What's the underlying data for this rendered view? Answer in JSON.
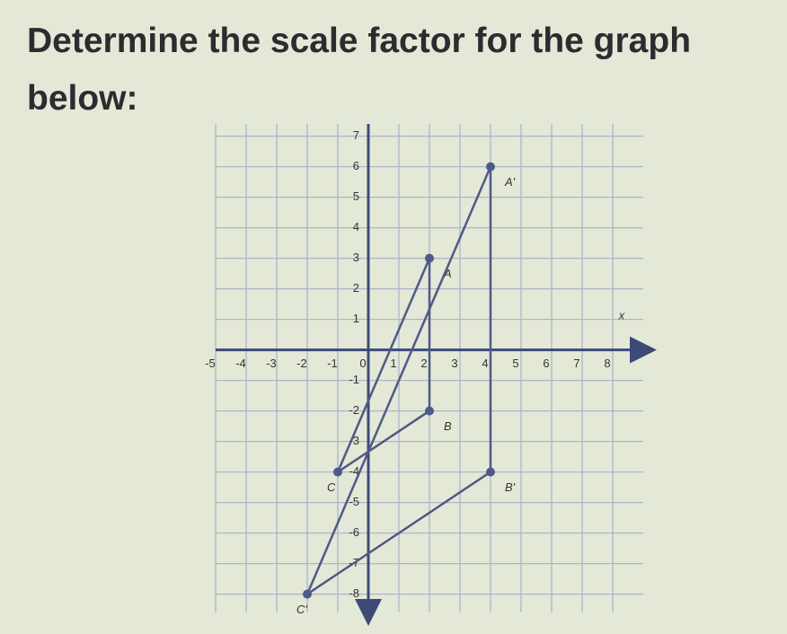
{
  "chart_data": {
    "type": "line",
    "title": "Determine the scale factor for the graph below:",
    "x_label": "x",
    "xlim": [
      -5,
      9
    ],
    "ylim": [
      -8.6,
      7.4
    ],
    "xticks": [
      -5,
      -4,
      -3,
      -2,
      -1,
      0,
      1,
      2,
      3,
      4,
      5,
      6,
      7,
      8
    ],
    "yticks": [
      7,
      6,
      5,
      4,
      3,
      2,
      1,
      -1,
      -2,
      -3,
      -4,
      -5,
      -6,
      -7,
      -8
    ],
    "grid": true,
    "series": [
      {
        "color": "#4e5a86",
        "labels": [
          "A",
          "B",
          "C"
        ],
        "x": [
          2,
          2,
          -1
        ],
        "values": [
          3,
          -2,
          -4
        ]
      },
      {
        "color": "#4e5a86",
        "labels": [
          "A'",
          "B'",
          "C'"
        ],
        "x": [
          4,
          4,
          -2
        ],
        "values": [
          6,
          -4,
          -8
        ]
      }
    ]
  }
}
